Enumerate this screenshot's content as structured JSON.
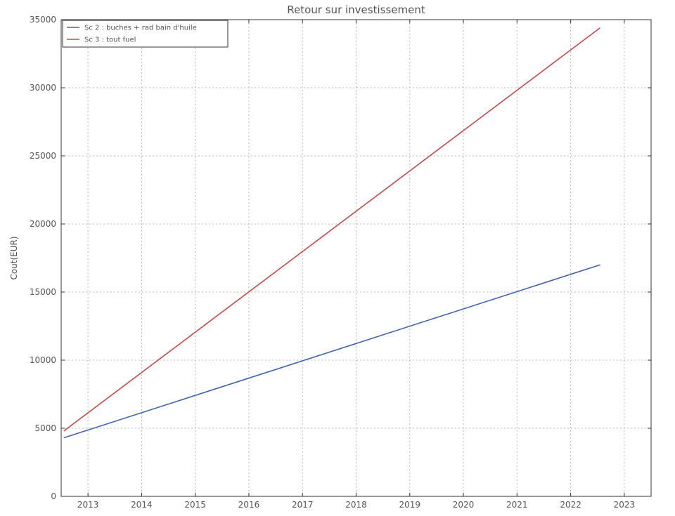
{
  "chart_data": {
    "type": "line",
    "title": "Retour sur investissement",
    "xlabel": "",
    "ylabel": "Cout(EUR)",
    "xlim": [
      2012.5,
      2023.5
    ],
    "ylim": [
      0,
      35000
    ],
    "xticks": [
      2013,
      2014,
      2015,
      2016,
      2017,
      2018,
      2019,
      2020,
      2021,
      2022,
      2023
    ],
    "yticks": [
      0,
      5000,
      10000,
      15000,
      20000,
      25000,
      30000,
      35000
    ],
    "grid": true,
    "legend_position": "top-left",
    "series": [
      {
        "name": "Sc 2 : buches + rad bain d'huile",
        "color": "#4062b5",
        "x": [
          2012.55,
          2022.55
        ],
        "values": [
          4300,
          17000
        ]
      },
      {
        "name": "Sc 3 : tout fuel",
        "color": "#c8474a",
        "x": [
          2012.55,
          2022.55
        ],
        "values": [
          4800,
          34400
        ]
      }
    ]
  }
}
